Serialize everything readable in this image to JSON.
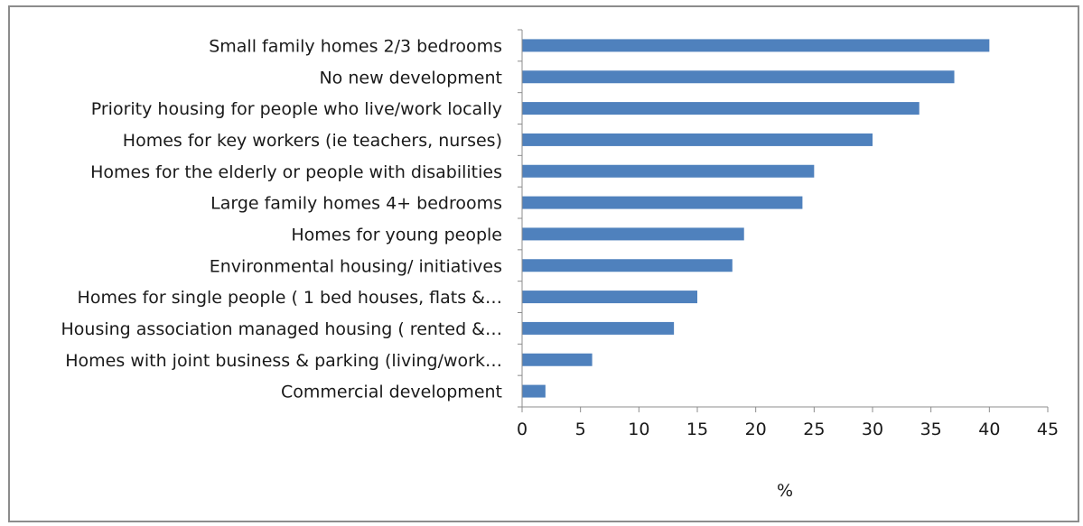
{
  "chart_data": {
    "type": "bar",
    "orientation": "horizontal",
    "categories": [
      "Small family homes 2/3 bedrooms",
      "No new development",
      "Priority housing for people who live/work locally",
      "Homes for key workers (ie teachers, nurses)",
      "Homes for the elderly or people with disabilities",
      "Large family homes 4+ bedrooms",
      "Homes for young people",
      "Environmental housing/ initiatives",
      "Homes for single people ( 1 bed houses, flats &…",
      "Housing association managed housing ( rented &…",
      "Homes with joint business & parking (living/work…",
      "Commercial development"
    ],
    "values": [
      40,
      37,
      34,
      30,
      25,
      24,
      19,
      18,
      15,
      13,
      6,
      2
    ],
    "xlabel": "%",
    "ylabel": "",
    "xlim": [
      0,
      45
    ],
    "xticks": [
      "0",
      "5",
      "10",
      "15",
      "20",
      "25",
      "30",
      "35",
      "40",
      "45"
    ],
    "grid": false,
    "legend": "none",
    "bar_color": "#4f81bd"
  }
}
